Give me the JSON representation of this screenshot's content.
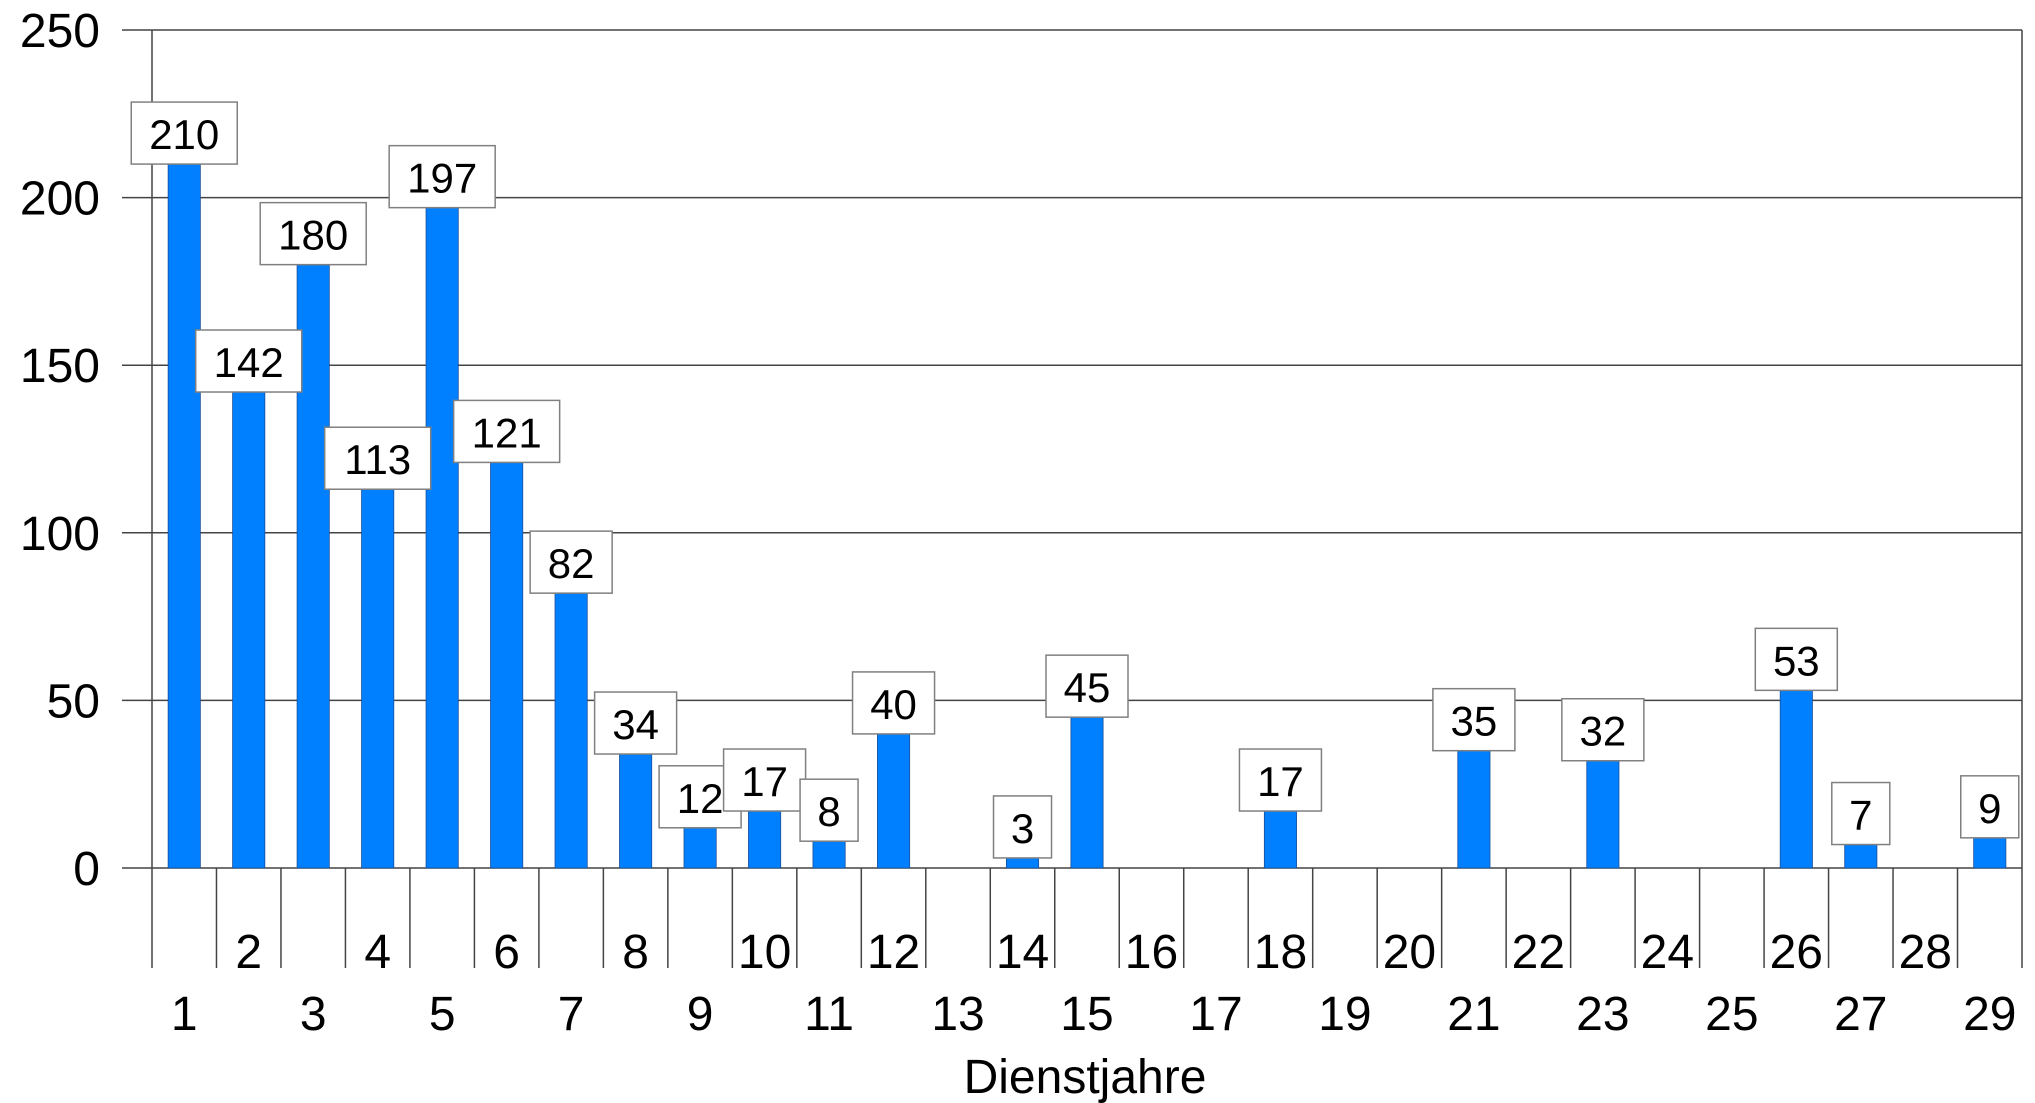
{
  "chart_data": {
    "type": "bar",
    "xlabel": "Dienstjahre",
    "ylabel": "",
    "ylim": [
      0,
      250
    ],
    "yticks": [
      0,
      50,
      100,
      150,
      200,
      250
    ],
    "grid": true,
    "legend": "none",
    "bar_color": "#0080ff",
    "categories": [
      "1",
      "2",
      "3",
      "4",
      "5",
      "6",
      "7",
      "8",
      "9",
      "10",
      "11",
      "12",
      "13",
      "14",
      "15",
      "16",
      "17",
      "18",
      "19",
      "20",
      "21",
      "22",
      "23",
      "24",
      "25",
      "26",
      "27",
      "28",
      "29"
    ],
    "values": [
      210,
      142,
      180,
      113,
      197,
      121,
      82,
      34,
      12,
      17,
      8,
      40,
      0,
      3,
      45,
      0,
      0,
      17,
      0,
      0,
      35,
      0,
      32,
      0,
      0,
      53,
      7,
      0,
      9
    ],
    "data_labels": [
      "210",
      "142",
      "180",
      "113",
      "197",
      "121",
      "82",
      "34",
      "12",
      "17",
      "8",
      "40",
      "",
      "3",
      "45",
      "",
      "",
      "17",
      "",
      "",
      "35",
      "",
      "32",
      "",
      "",
      "53",
      "7",
      "",
      "9"
    ]
  }
}
